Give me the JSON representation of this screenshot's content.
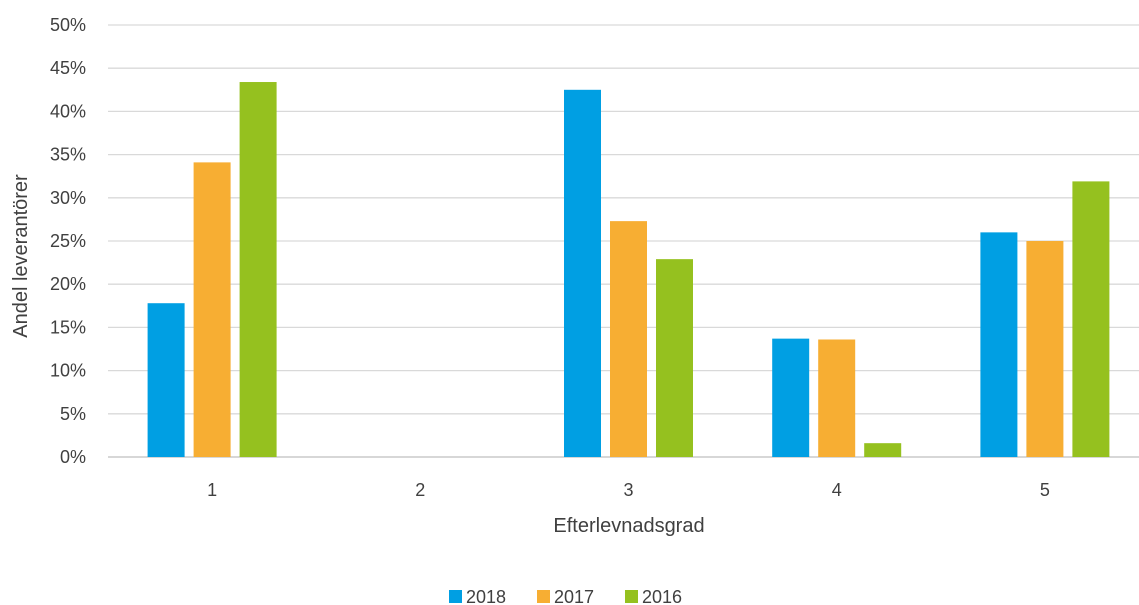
{
  "chart_data": {
    "type": "bar",
    "title": "",
    "xlabel": "Efterlevnadsgrad",
    "ylabel": "Andel leverantörer",
    "categories": [
      "1",
      "2",
      "3",
      "4",
      "5"
    ],
    "ylim": [
      0,
      50
    ],
    "yticks": [
      "0%",
      "5%",
      "10%",
      "15%",
      "20%",
      "25%",
      "30%",
      "35%",
      "40%",
      "45%",
      "50%"
    ],
    "grid": true,
    "legend_position": "bottom",
    "series": [
      {
        "name": "2018",
        "color": "#009fe3",
        "values": [
          17.8,
          0,
          42.5,
          13.7,
          26.0
        ]
      },
      {
        "name": "2017",
        "color": "#f7ae33",
        "values": [
          34.1,
          0,
          27.3,
          13.6,
          25.0
        ]
      },
      {
        "name": "2016",
        "color": "#95c11f",
        "values": [
          43.4,
          0,
          22.9,
          1.6,
          31.9
        ]
      }
    ]
  }
}
